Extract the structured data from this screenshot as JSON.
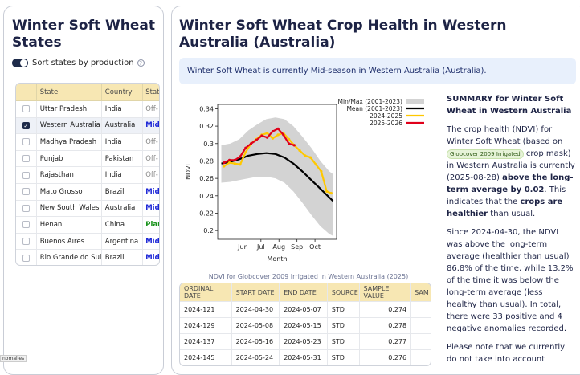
{
  "left_panel": {
    "title": "Winter Soft Wheat States",
    "toggle_label": "Sort states by production",
    "table": {
      "headers": [
        "State",
        "Country",
        "Stat"
      ],
      "rows": [
        {
          "state": "Uttar Pradesh",
          "country": "India",
          "stage": "Off-",
          "checked": false
        },
        {
          "state": "Western Australia",
          "country": "Australia",
          "stage": "Mid",
          "checked": true
        },
        {
          "state": "Madhya Pradesh",
          "country": "India",
          "stage": "Off-",
          "checked": false
        },
        {
          "state": "Punjab",
          "country": "Pakistan",
          "stage": "Off-",
          "checked": false
        },
        {
          "state": "Rajasthan",
          "country": "India",
          "stage": "Off-",
          "checked": false
        },
        {
          "state": "Mato Grosso",
          "country": "Brazil",
          "stage": "Mid",
          "checked": false
        },
        {
          "state": "New South Wales",
          "country": "Australia",
          "stage": "Mid",
          "checked": false
        },
        {
          "state": "Henan",
          "country": "China",
          "stage": "Plar",
          "checked": false
        },
        {
          "state": "Buenos Aires",
          "country": "Argentina",
          "stage": "Mid",
          "checked": false
        },
        {
          "state": "Rio Grande do Sul",
          "country": "Brazil",
          "stage": "Mid",
          "checked": false
        }
      ]
    },
    "tooltip": "nomalies"
  },
  "main": {
    "title": "Winter Soft Wheat Crop Health in Western Australia (Australia)",
    "banner": "Winter Soft Wheat is currently Mid-season in Western Australia (Australia).",
    "chart_caption": "NDVI for Globcover 2009 Irrigated in Western Australia (2025)",
    "summary": {
      "title": "SUMMARY for Winter Soft Wheat in Western Australia",
      "p1_a": "The crop health (NDVI) for Winter Soft Wheat (based on ",
      "mask": "Globcover 2009 Irrigated",
      "p1_b": " crop mask) in Western Australia is currently (2025-08-28) ",
      "p1_bold1": "above the long-term average by 0.02",
      "p1_c": ". This indicates that the ",
      "p1_bold2": "crops are healthier",
      "p1_d": " than usual.",
      "p2": "Since 2024-04-30, the NDVI was above the long-term average (healthier than usual) 86.8% of the time, while 13.2% of the time it was below the long-term average (less healthy than usual). In total, there were 33 positive and 4 negative anomalies recorded.",
      "p3": "Please note that we currently do not take into account"
    },
    "data_table": {
      "headers": [
        "ORDINAL DATE",
        "START DATE",
        "END DATE",
        "SOURCE",
        "SAMPLE VALUE",
        "SAM"
      ],
      "rows": [
        {
          "ordinal": "2024-121",
          "start": "2024-04-30",
          "end": "2024-05-07",
          "source": "STD",
          "value": "0.274"
        },
        {
          "ordinal": "2024-129",
          "start": "2024-05-08",
          "end": "2024-05-15",
          "source": "STD",
          "value": "0.278"
        },
        {
          "ordinal": "2024-137",
          "start": "2024-05-16",
          "end": "2024-05-23",
          "source": "STD",
          "value": "0.277"
        },
        {
          "ordinal": "2024-145",
          "start": "2024-05-24",
          "end": "2024-05-31",
          "source": "STD",
          "value": "0.276"
        }
      ]
    }
  },
  "chart_data": {
    "type": "line",
    "title": "",
    "xlabel": "Month",
    "ylabel": "NDVI",
    "xlim": [
      4.6,
      11.2
    ],
    "ylim": [
      0.19,
      0.345
    ],
    "xticks": [
      {
        "v": 6,
        "label": "Jun"
      },
      {
        "v": 7,
        "label": "Jul"
      },
      {
        "v": 8,
        "label": "Aug"
      },
      {
        "v": 9,
        "label": "Sep"
      },
      {
        "v": 10,
        "label": "Oct"
      }
    ],
    "yticks": [
      0.2,
      0.22,
      0.24,
      0.26,
      0.28,
      0.3,
      0.32,
      0.34
    ],
    "ytick_labels": [
      "0.2",
      "0.22",
      "0.24",
      "0.26",
      "0.28",
      "0.3",
      "0.32",
      "0.34"
    ],
    "legend": [
      {
        "name": "Min/Max (2001-2023)",
        "color": "#d3d3d3",
        "kind": "band"
      },
      {
        "name": "Mean (2001-2023)",
        "color": "#000000",
        "kind": "line"
      },
      {
        "name": "2024-2025",
        "color": "#ffc800",
        "kind": "line"
      },
      {
        "name": "2025-2026",
        "color": "#e0001a",
        "kind": "line"
      }
    ],
    "band": {
      "x": [
        4.8,
        5.3,
        5.8,
        6.3,
        6.8,
        7.3,
        7.8,
        8.3,
        8.8,
        9.3,
        9.8,
        10.3,
        10.8,
        11.0
      ],
      "min": [
        0.255,
        0.256,
        0.258,
        0.26,
        0.262,
        0.262,
        0.26,
        0.255,
        0.245,
        0.232,
        0.218,
        0.205,
        0.196,
        0.194
      ],
      "max": [
        0.298,
        0.3,
        0.305,
        0.315,
        0.322,
        0.328,
        0.33,
        0.328,
        0.32,
        0.308,
        0.295,
        0.28,
        0.268,
        0.265
      ]
    },
    "series": [
      {
        "name": "Mean (2001-2023)",
        "color": "#000000",
        "x": [
          4.8,
          5.3,
          5.8,
          6.3,
          6.8,
          7.3,
          7.8,
          8.3,
          8.8,
          9.3,
          9.8,
          10.3,
          10.8,
          11.0
        ],
        "y": [
          0.277,
          0.279,
          0.282,
          0.286,
          0.288,
          0.289,
          0.288,
          0.284,
          0.277,
          0.268,
          0.258,
          0.248,
          0.238,
          0.234
        ]
      },
      {
        "name": "2024-2025",
        "color": "#ffc800",
        "x": [
          4.95,
          5.25,
          5.55,
          5.85,
          6.15,
          6.45,
          6.75,
          7.05,
          7.35,
          7.65,
          7.95,
          8.25,
          8.55,
          8.85,
          9.15,
          9.45,
          9.75,
          10.05,
          10.35,
          10.65,
          10.9
        ],
        "y": [
          0.274,
          0.278,
          0.277,
          0.276,
          0.29,
          0.3,
          0.305,
          0.31,
          0.312,
          0.306,
          0.31,
          0.312,
          0.305,
          0.298,
          0.292,
          0.286,
          0.284,
          0.276,
          0.268,
          0.245,
          0.243
        ]
      },
      {
        "name": "2025-2026",
        "color": "#e0001a",
        "x": [
          4.95,
          5.25,
          5.55,
          5.85,
          6.15,
          6.45,
          6.75,
          7.05,
          7.35,
          7.65,
          7.95,
          8.25,
          8.55,
          8.85
        ],
        "y": [
          0.278,
          0.281,
          0.281,
          0.285,
          0.295,
          0.3,
          0.304,
          0.309,
          0.307,
          0.314,
          0.317,
          0.31,
          0.3,
          0.298
        ]
      }
    ]
  }
}
